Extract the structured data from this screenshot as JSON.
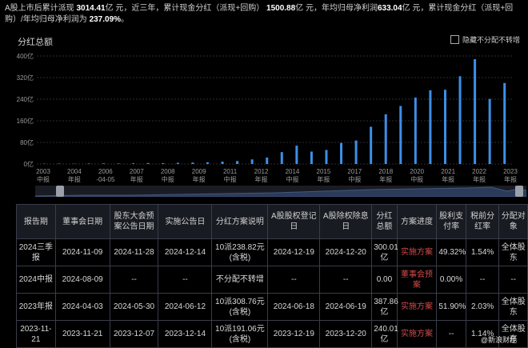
{
  "summary": {
    "p1": "A股上市后累计派现 ",
    "v1": "3014.41",
    "u1": "亿 元，近三年，累计现金分红（派现+回购）",
    "v2": "1500.88",
    "u2": "亿 元，年均归母净利润",
    "v3": "633.04",
    "u3": "亿 元，累计现金分红（派现+回购）/年均归母净利润为",
    "v4": "237.09%",
    "u4": "。"
  },
  "chart_title": "分红总额",
  "legend_label": "隐藏不分配不转增",
  "chart_data": {
    "type": "bar",
    "title": "分红总额",
    "color": "#3d8fe8",
    "ylim": [
      0,
      400
    ],
    "yticks": [
      "0亿",
      "80亿",
      "160亿",
      "240亿",
      "320亿",
      "400亿"
    ],
    "xticks": [
      {
        "top": "2003",
        "bottom": "中报"
      },
      {
        "top": "2004",
        "bottom": "年报"
      },
      {
        "top": "2006",
        "bottom": "-04-05"
      },
      {
        "top": "2007",
        "bottom": "年报"
      },
      {
        "top": "2008",
        "bottom": "中报"
      },
      {
        "top": "2009",
        "bottom": "年报"
      },
      {
        "top": "2011",
        "bottom": "中报"
      },
      {
        "top": "2012",
        "bottom": "年报"
      },
      {
        "top": "2014",
        "bottom": "中报"
      },
      {
        "top": "2015",
        "bottom": "年报"
      },
      {
        "top": "2017",
        "bottom": "中报"
      },
      {
        "top": "2018",
        "bottom": "年报"
      },
      {
        "top": "2020",
        "bottom": "中报"
      },
      {
        "top": "2021",
        "bottom": "年报"
      },
      {
        "top": "2022",
        "bottom": "年报"
      },
      {
        "top": "2023",
        "bottom": "年报"
      }
    ],
    "values": [
      1.2,
      1.5,
      1.0,
      1.8,
      2.2,
      2.0,
      2.6,
      3.5,
      3.0,
      4.5,
      5.5,
      6.5,
      9,
      11,
      17,
      24,
      44,
      68,
      46,
      52,
      78,
      87,
      138,
      184,
      215,
      246,
      273,
      275,
      325,
      388,
      241,
      300
    ]
  },
  "table": {
    "headers": [
      "报告期",
      "董事会日期",
      "股东大会预案公告日期",
      "实施公告日",
      "分红方案说明",
      "A股股权登记日",
      "A股除权除息日",
      "分红总额",
      "方案进度",
      "股利支付率",
      "税前分红率",
      "分配对象"
    ],
    "rows": [
      [
        "2024三季报",
        "2024-11-09",
        "2024-11-28",
        "2024-12-14",
        "10派238.82元(含税)",
        "2024-12-19",
        "2024-12-20",
        "300.01亿",
        "实施方案",
        "49.32%",
        "1.54%",
        "全体股东"
      ],
      [
        "2024中报",
        "2024-08-09",
        "--",
        "--",
        "不分配不转增",
        "--",
        "--",
        "0.00",
        "董事会预案",
        "0.00%",
        "--",
        "--"
      ],
      [
        "2023年报",
        "2024-04-03",
        "2024-05-30",
        "2024-06-12",
        "10派308.76元(含税)",
        "2024-06-18",
        "2024-06-19",
        "387.86亿",
        "实施方案",
        "51.90%",
        "2.03%",
        "全体股东"
      ],
      [
        "2023-11-21",
        "2023-11-21",
        "2023-12-07",
        "2023-12-14",
        "10派191.06元(含税)",
        "2023-12-19",
        "2023-12-20",
        "240.01亿",
        "实施方案",
        "--",
        "1.14%",
        "全体股东"
      ]
    ]
  },
  "watermark": "@新浪财经"
}
